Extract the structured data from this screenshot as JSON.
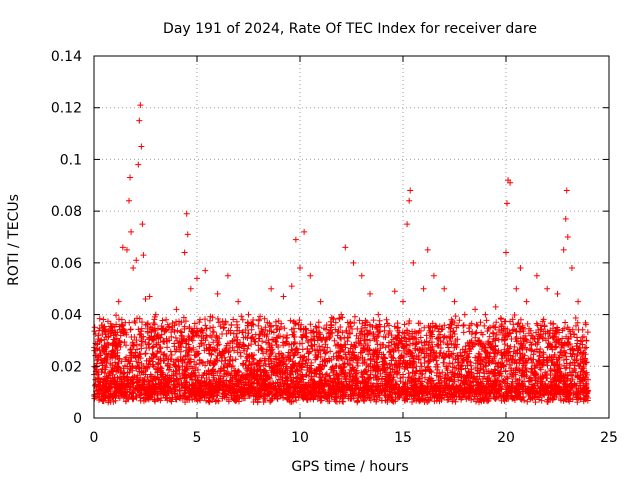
{
  "chart_data": {
    "type": "scatter",
    "title": "Day 191 of 2024, Rate Of TEC Index for receiver dare",
    "xlabel": "GPS time / hours",
    "ylabel": "ROTI / TECUs",
    "xlim": [
      0,
      25
    ],
    "ylim": [
      0,
      0.14
    ],
    "xticks": [
      0,
      5,
      10,
      15,
      20,
      25
    ],
    "xtick_labels": [
      "0",
      "5",
      "10",
      "15",
      "20",
      "25"
    ],
    "yticks": [
      0,
      0.02,
      0.04,
      0.06,
      0.08,
      0.1,
      0.12,
      0.14
    ],
    "ytick_labels": [
      "0",
      "0.02",
      "0.04",
      "0.06",
      "0.08",
      "0.1",
      "0.12",
      "0.14"
    ],
    "grid": true,
    "marker": "+",
    "color": "#ff0000",
    "data_x_range": [
      0,
      24
    ],
    "series": [
      {
        "name": "ROTI",
        "points": [
          [
            0.1,
            0.02
          ],
          [
            0.3,
            0.03
          ],
          [
            0.6,
            0.025
          ],
          [
            0.9,
            0.028
          ],
          [
            1.2,
            0.045
          ],
          [
            1.4,
            0.066
          ],
          [
            1.6,
            0.065
          ],
          [
            1.7,
            0.084
          ],
          [
            1.75,
            0.093
          ],
          [
            1.8,
            0.072
          ],
          [
            1.9,
            0.058
          ],
          [
            2.05,
            0.061
          ],
          [
            2.15,
            0.098
          ],
          [
            2.2,
            0.115
          ],
          [
            2.25,
            0.121
          ],
          [
            2.3,
            0.105
          ],
          [
            2.35,
            0.075
          ],
          [
            2.4,
            0.063
          ],
          [
            2.5,
            0.046
          ],
          [
            2.7,
            0.047
          ],
          [
            3.0,
            0.04
          ],
          [
            3.5,
            0.038
          ],
          [
            4.0,
            0.042
          ],
          [
            4.4,
            0.064
          ],
          [
            4.5,
            0.079
          ],
          [
            4.55,
            0.071
          ],
          [
            4.7,
            0.05
          ],
          [
            5.0,
            0.054
          ],
          [
            5.4,
            0.057
          ],
          [
            6.0,
            0.048
          ],
          [
            6.5,
            0.055
          ],
          [
            7.0,
            0.045
          ],
          [
            7.5,
            0.04
          ],
          [
            8.0,
            0.038
          ],
          [
            8.6,
            0.05
          ],
          [
            9.2,
            0.047
          ],
          [
            9.6,
            0.051
          ],
          [
            9.8,
            0.069
          ],
          [
            10.0,
            0.058
          ],
          [
            10.2,
            0.072
          ],
          [
            10.5,
            0.055
          ],
          [
            11.0,
            0.045
          ],
          [
            11.5,
            0.035
          ],
          [
            12.0,
            0.04
          ],
          [
            12.2,
            0.066
          ],
          [
            12.6,
            0.06
          ],
          [
            13.0,
            0.055
          ],
          [
            13.4,
            0.048
          ],
          [
            13.8,
            0.04
          ],
          [
            14.2,
            0.038
          ],
          [
            14.6,
            0.049
          ],
          [
            15.0,
            0.045
          ],
          [
            15.2,
            0.075
          ],
          [
            15.3,
            0.084
          ],
          [
            15.35,
            0.088
          ],
          [
            15.5,
            0.06
          ],
          [
            16.0,
            0.05
          ],
          [
            16.2,
            0.065
          ],
          [
            16.5,
            0.055
          ],
          [
            17.0,
            0.05
          ],
          [
            17.5,
            0.045
          ],
          [
            18.0,
            0.04
          ],
          [
            18.5,
            0.042
          ],
          [
            19.0,
            0.04
          ],
          [
            19.5,
            0.043
          ],
          [
            20.0,
            0.064
          ],
          [
            20.05,
            0.083
          ],
          [
            20.1,
            0.092
          ],
          [
            20.2,
            0.091
          ],
          [
            20.5,
            0.05
          ],
          [
            20.7,
            0.058
          ],
          [
            21.0,
            0.045
          ],
          [
            21.5,
            0.055
          ],
          [
            22.0,
            0.05
          ],
          [
            22.5,
            0.048
          ],
          [
            22.8,
            0.065
          ],
          [
            22.9,
            0.077
          ],
          [
            22.95,
            0.088
          ],
          [
            23.0,
            0.07
          ],
          [
            23.2,
            0.058
          ],
          [
            23.5,
            0.045
          ],
          [
            23.9,
            0.03
          ]
        ]
      }
    ]
  }
}
